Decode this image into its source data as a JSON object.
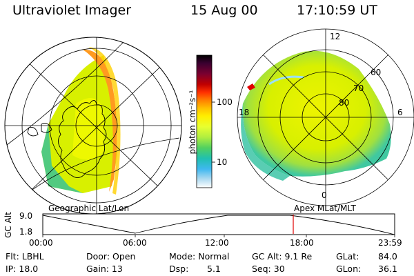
{
  "header": {
    "instrument": "Ultraviolet Imager",
    "date": "15 Aug 00",
    "time": "17:10:59 UT"
  },
  "colorbar": {
    "unit_label": "photon cm⁻²s⁻¹",
    "ticks": [
      "100",
      "10"
    ],
    "scale": "log",
    "colors": [
      "#000000",
      "#3a0030",
      "#7a0030",
      "#c00000",
      "#ff2000",
      "#ff6000",
      "#ffa000",
      "#ffe000",
      "#f0ff20",
      "#c8f030",
      "#90e040",
      "#40d060",
      "#20c0b0",
      "#40b0f0",
      "#a0d8f0",
      "#e0f0f8",
      "#ffffff"
    ]
  },
  "geo_panel": {
    "label": "Geographic Lat/Lon"
  },
  "polar_panel": {
    "label": "Apex MLat/MLT",
    "mlt_labels": {
      "top": "12",
      "bottom": "0",
      "left": "18",
      "right": "6"
    },
    "lat_labels": [
      "60",
      "70",
      "80"
    ]
  },
  "alt_plot": {
    "ylabel": "GC Alt",
    "y_ticks": [
      "9.0",
      "1.8"
    ],
    "x_ticks": [
      "00:00",
      "06:00",
      "12:00",
      "18:00",
      "23:59"
    ],
    "marker_color": "#e00000"
  },
  "info": {
    "flt": "Flt: LBHL",
    "ip": "IP: 18.0",
    "door": "Door: Open",
    "gain": "Gain: 13",
    "mode": "Mode: Normal",
    "dsp_label": "Dsp:",
    "dsp_value": "5.1",
    "gcalt": "GC Alt: 9.1 Re",
    "seq": "Seq: 30",
    "glat": "GLat:",
    "glat_value": "84.0",
    "glon": "GLon:",
    "glon_value": "36.1"
  }
}
